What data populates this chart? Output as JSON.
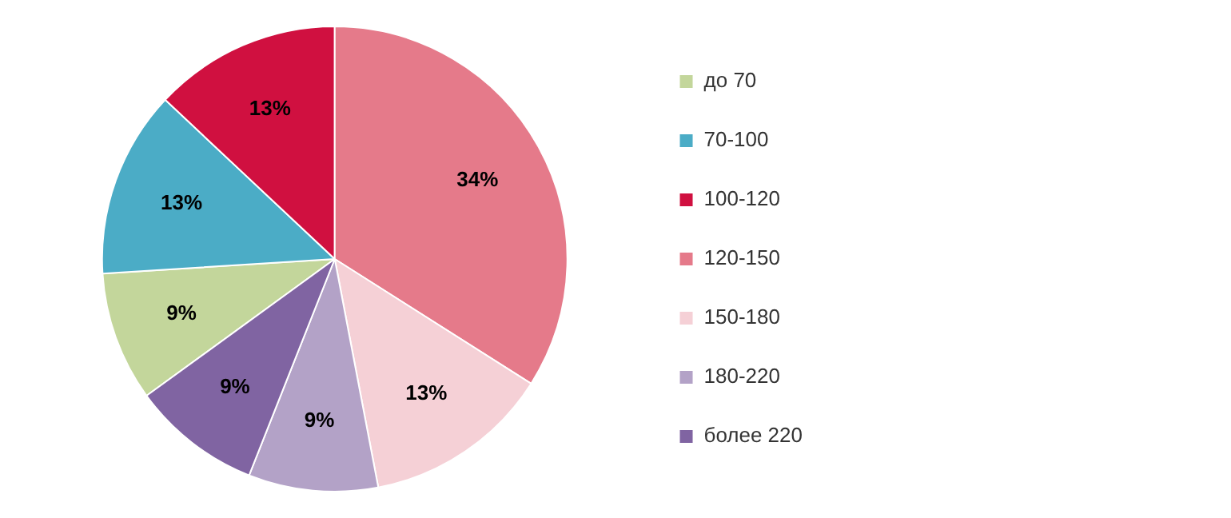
{
  "chart_data": {
    "type": "pie",
    "categories": [
      "до 70",
      "70-100",
      "100-120",
      "120-150",
      "150-180",
      "180-220",
      "более 220"
    ],
    "values": [
      9,
      13,
      13,
      34,
      13,
      9,
      9
    ],
    "value_labels": [
      "9%",
      "13%",
      "13%",
      "34%",
      "13%",
      "9%",
      "9%"
    ],
    "colors": [
      "#c3d69b",
      "#4bacc6",
      "#d01040",
      "#e57a8a",
      "#f5d0d6",
      "#b3a2c7",
      "#8064a2"
    ],
    "legend": "right"
  }
}
